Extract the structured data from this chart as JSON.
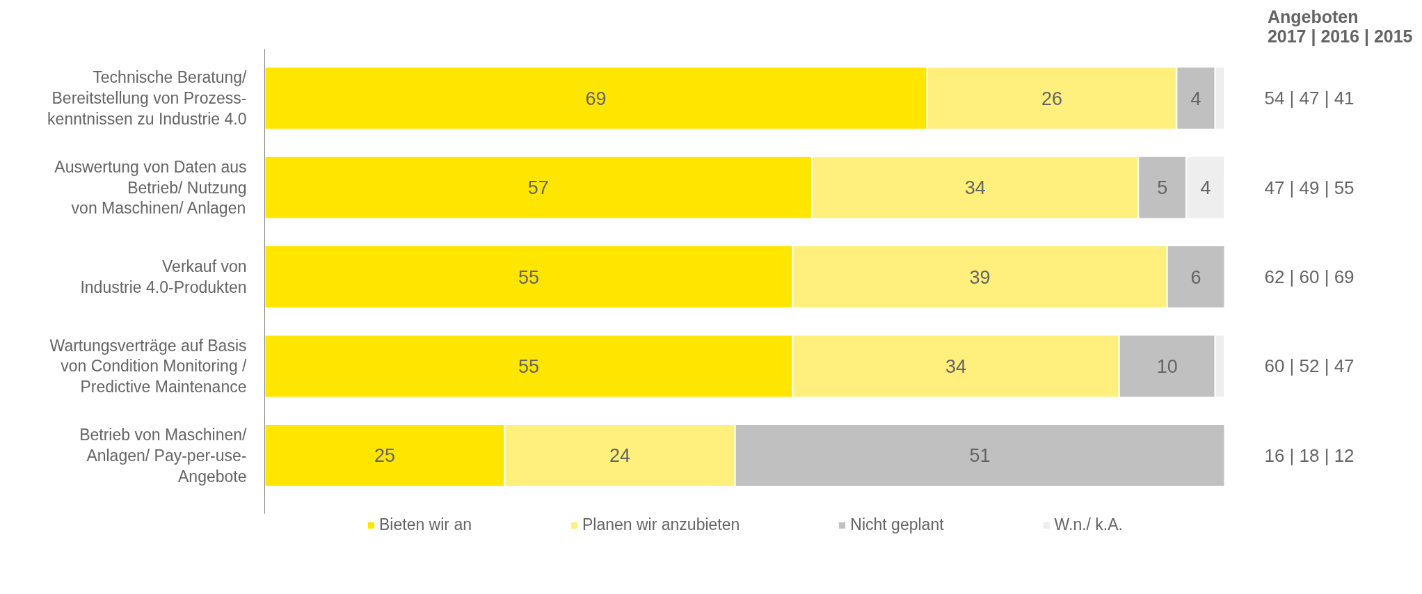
{
  "chart_data": {
    "type": "bar",
    "orientation": "horizontal",
    "stacked": true,
    "tick_labels": "y",
    "legend": "bottom",
    "grid": false,
    "categories": [
      "Technische Beratung/\nBereitstellung von Prozess-\nkenntnissen zu Industrie 4.0",
      "Auswertung von Daten aus\nBetrieb/ Nutzung\nvon Maschinen/ Anlagen",
      "Verkauf von\nIndustrie 4.0-Produkten",
      "Wartungsverträge auf Basis\nvon Condition Monitoring /\nPredictive Maintenance",
      "Betrieb von Maschinen/\nAnlagen/ Pay-per-use-\nAngebote"
    ],
    "xlim": [
      0,
      100
    ],
    "series": [
      {
        "name": "Bieten wir an",
        "color": "#ffe600",
        "values": [
          69,
          57,
          55,
          55,
          25
        ],
        "value_labels": [
          "69",
          "57",
          "55",
          "55",
          "25"
        ]
      },
      {
        "name": "Planen wir anzubieten",
        "color": "#fff07e",
        "values": [
          26,
          34,
          39,
          34,
          24
        ],
        "value_labels": [
          "26",
          "34",
          "39",
          "34",
          "24"
        ]
      },
      {
        "name": "Nicht geplant",
        "color": "#c0c0c0",
        "values": [
          4,
          5,
          6,
          10,
          51
        ],
        "value_labels": [
          "4",
          "5",
          "6",
          "10",
          "51"
        ]
      },
      {
        "name": "W.n./ k.A.",
        "color": "#eeeeee",
        "values": [
          1,
          4,
          0,
          1,
          0
        ],
        "value_labels": [
          null,
          "4",
          null,
          null,
          null
        ]
      }
    ],
    "annotations": [
      "Angeboten\n2017 | 2016 | 2015",
      "54 | 47 | 41",
      "47 | 49 | 55",
      "62 | 60 | 69",
      "60 | 52 | 47",
      "16 | 18 | 12"
    ]
  }
}
